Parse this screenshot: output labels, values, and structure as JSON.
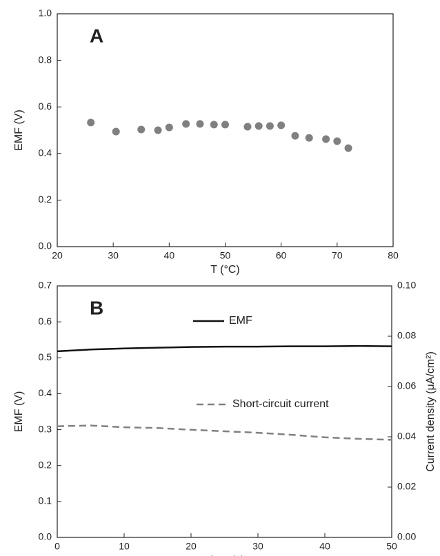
{
  "chart_data": [
    {
      "type": "scatter",
      "annotation": "A",
      "x_label": "T (°C)",
      "y_label": "EMF (V)",
      "x": [
        26,
        30.5,
        35,
        38,
        40,
        43,
        45.5,
        48,
        50,
        54,
        56,
        58,
        60,
        62.5,
        65,
        68,
        70,
        72
      ],
      "series": [
        {
          "color": "#808080",
          "values": [
            0.533,
            0.494,
            0.503,
            0.5,
            0.512,
            0.527,
            0.527,
            0.524,
            0.524,
            0.515,
            0.518,
            0.518,
            0.521,
            0.476,
            0.467,
            0.462,
            0.453,
            0.423
          ]
        }
      ],
      "xlim": [
        20,
        80
      ],
      "xticks": [
        20,
        30,
        40,
        50,
        60,
        70,
        80
      ],
      "ylim": [
        0,
        1
      ],
      "yticks": [
        {
          "value": 0,
          "label": "0.0"
        },
        0.2,
        0.4,
        0.6,
        0.8,
        {
          "value": 1,
          "label": "1.0"
        }
      ]
    },
    {
      "type": "line",
      "annotation": "B",
      "x_label": "Time (s)",
      "y_label": "EMF (V)",
      "y2_label": "Current density (μA/cm²)",
      "x": [
        0,
        5,
        10,
        15,
        20,
        25,
        30,
        35,
        40,
        45,
        50
      ],
      "series": [
        {
          "name": "EMF",
          "color": "#111111",
          "values": [
            0.518,
            0.523,
            0.526,
            0.528,
            0.53,
            0.531,
            0.531,
            0.532,
            0.532,
            0.533,
            0.532
          ]
        },
        {
          "name": "Short-circuit current",
          "color": "#808080",
          "dashed": true,
          "axis": "y2",
          "values": [
            0.0442,
            0.0445,
            0.0438,
            0.0435,
            0.0428,
            0.0422,
            0.0416,
            0.0408,
            0.0398,
            0.0392,
            0.0388
          ]
        }
      ],
      "xlim": [
        0,
        50
      ],
      "xticks": [
        0,
        10,
        20,
        30,
        40,
        50
      ],
      "ylim": [
        0,
        0.7
      ],
      "yticks": [
        {
          "value": 0,
          "label": "0.0"
        },
        0.1,
        0.2,
        0.3,
        0.4,
        0.5,
        0.6,
        0.7
      ],
      "y2lim": [
        0,
        0.1
      ],
      "y2ticks": [
        {
          "value": 0,
          "label": "0.00"
        },
        {
          "value": 0.02,
          "label": "0.02"
        },
        {
          "value": 0.04,
          "label": "0.04"
        },
        {
          "value": 0.06,
          "label": "0.06"
        },
        {
          "value": 0.08,
          "label": "0.08"
        },
        {
          "value": 0.1,
          "label": "0.10"
        }
      ]
    }
  ]
}
